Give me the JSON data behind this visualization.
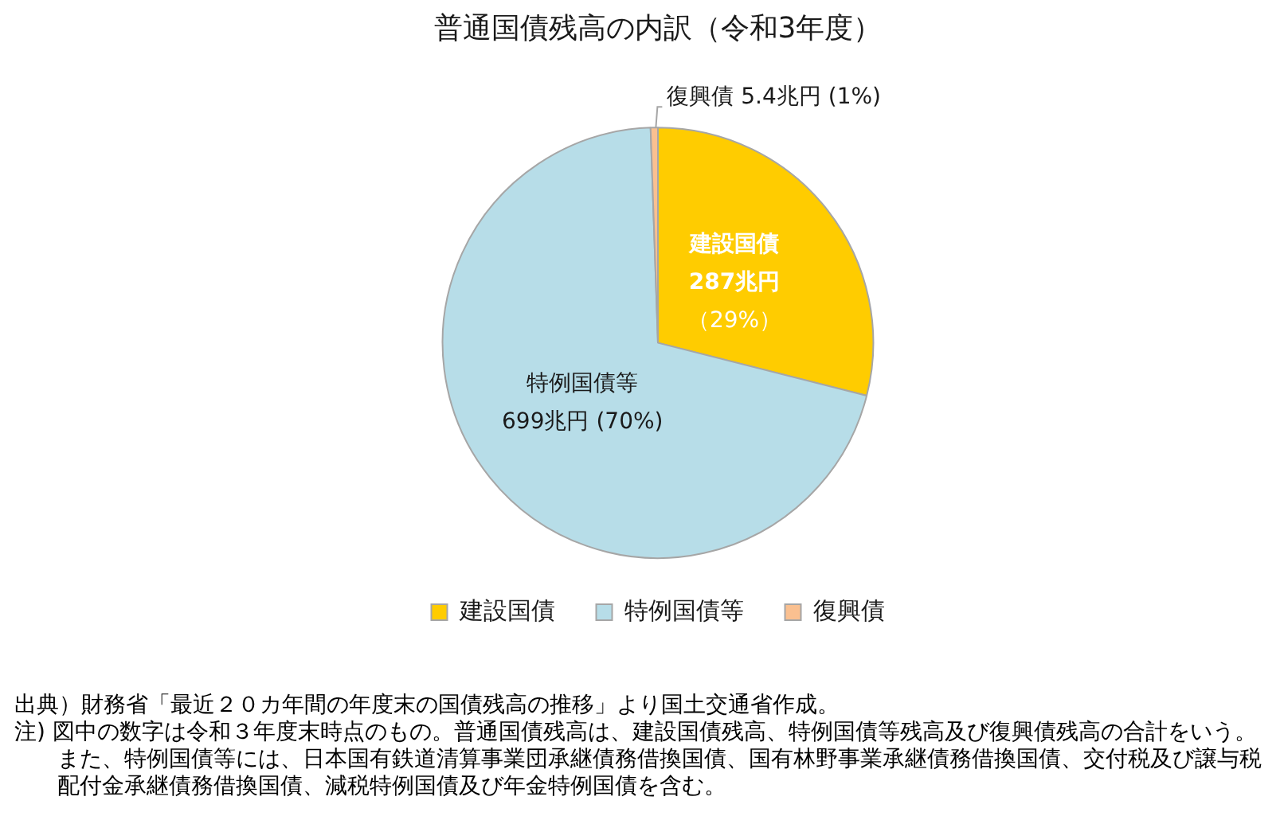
{
  "chart_data": {
    "type": "pie",
    "title": "普通国債残高の内訳（令和3年度）",
    "categories": [
      "建設国債",
      "特例国債等",
      "復興債"
    ],
    "values": [
      287,
      699,
      5.4
    ],
    "colors": [
      "#ffcc00",
      "#b7dde8",
      "#fac090"
    ],
    "value_labels": [
      "287兆円（29%）",
      "699兆円 (70%)",
      "5.4兆円 (1%)"
    ],
    "legend": "bottom",
    "annotations": [
      "出典）財務省「最近２０カ年間の年度末の国債残高の推移」より国土交通省作成。",
      "注) 図中の数字は令和３年度末時点のもの。普通国債残高は、建設国債残高、特例国債等残高及び復興債残高の合計をいう。また、特例国債等には、日本国有鉄道清算事業団承継債務借換国債、国有林野事業承継債務借換国債、交付税及び譲与税配付金承継債務借換国債、減税特例国債及び年金特例国債を含む。"
    ]
  }
}
